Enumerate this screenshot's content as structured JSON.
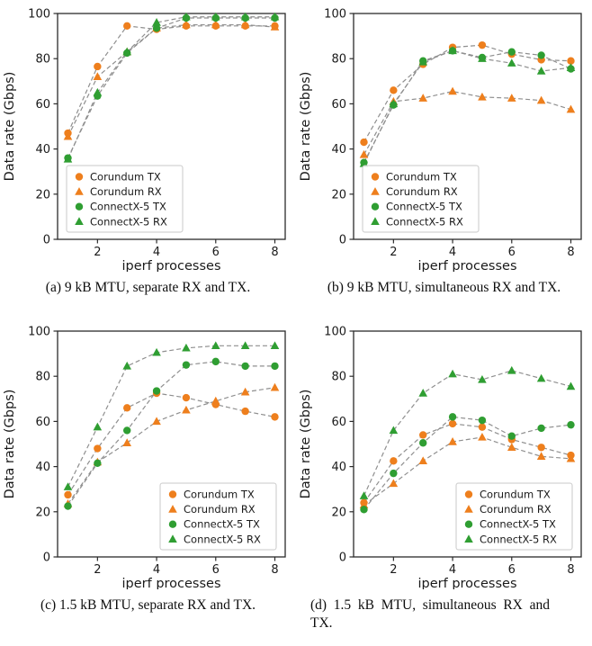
{
  "figure": {
    "background": "#ffffff",
    "captions": {
      "a": "(a) 9 kB MTU, separate RX and TX.",
      "b": "(b) 9 kB MTU, simultaneous RX and TX.",
      "c": "(c) 1.5 kB MTU, separate RX and TX.",
      "d": "(d) 1.5 kB MTU, simultaneous RX and TX."
    }
  },
  "colors": {
    "corundum": "#ee7f1d",
    "connectx5": "#2f9e32",
    "line": "#8f8f8f",
    "axis": "#2b2b2b",
    "legend_border": "#c9c9c9",
    "legend_bg": "rgba(255,255,255,0.88)"
  },
  "axes": {
    "xlabel": "iperf processes",
    "ylabel": "Data rate (Gbps)",
    "xticks": [
      2,
      4,
      6,
      8
    ],
    "yticks": [
      0,
      20,
      40,
      60,
      80,
      100
    ],
    "xlim": [
      0.65,
      8.35
    ],
    "ylim": [
      0,
      100
    ],
    "grid": false
  },
  "legend_entries": [
    {
      "label": "Corundum TX",
      "marker": "circle",
      "color": "#ee7f1d"
    },
    {
      "label": "Corundum RX",
      "marker": "triangle",
      "color": "#ee7f1d"
    },
    {
      "label": "ConnectX-5 TX",
      "marker": "circle",
      "color": "#2f9e32"
    },
    {
      "label": "ConnectX-5 RX",
      "marker": "triangle",
      "color": "#2f9e32"
    }
  ],
  "chart_data": [
    {
      "id": "a",
      "type": "line",
      "caption": "(a) 9 kB MTU, separate RX and TX.",
      "xlabel": "iperf processes",
      "ylabel": "Data rate (Gbps)",
      "legend_position": "lower-left",
      "x": [
        1,
        2,
        3,
        4,
        5,
        6,
        7,
        8
      ],
      "series": [
        {
          "name": "Corundum TX",
          "marker": "circle",
          "color": "#ee7f1d",
          "values": [
            47,
            76.5,
            94.5,
            93,
            94.5,
            94.5,
            94.5,
            94.5
          ]
        },
        {
          "name": "Corundum RX",
          "marker": "triangle",
          "color": "#ee7f1d",
          "values": [
            45.5,
            72,
            83,
            93.5,
            95,
            95,
            95,
            94
          ]
        },
        {
          "name": "ConnectX-5 TX",
          "marker": "circle",
          "color": "#2f9e32",
          "values": [
            36,
            63.5,
            82.5,
            93.5,
            98,
            98,
            98,
            98
          ]
        },
        {
          "name": "ConnectX-5 RX",
          "marker": "triangle",
          "color": "#2f9e32",
          "values": [
            35.5,
            65,
            83,
            96,
            98.5,
            98.5,
            98.5,
            98.5
          ]
        }
      ]
    },
    {
      "id": "b",
      "type": "line",
      "caption": "(b) 9 kB MTU, simultaneous RX and TX.",
      "xlabel": "iperf processes",
      "ylabel": "Data rate (Gbps)",
      "legend_position": "lower-left",
      "x": [
        1,
        2,
        3,
        4,
        5,
        6,
        7,
        8
      ],
      "series": [
        {
          "name": "Corundum TX",
          "marker": "circle",
          "color": "#ee7f1d",
          "values": [
            43,
            66,
            77.5,
            85,
            86,
            82,
            79.5,
            79
          ]
        },
        {
          "name": "Corundum RX",
          "marker": "triangle",
          "color": "#ee7f1d",
          "values": [
            37.5,
            61,
            62.5,
            65.5,
            63,
            62.5,
            61.5,
            57.5
          ]
        },
        {
          "name": "ConnectX-5 TX",
          "marker": "circle",
          "color": "#2f9e32",
          "values": [
            34,
            59.5,
            79,
            83.5,
            80.5,
            83,
            81.5,
            75.5
          ]
        },
        {
          "name": "ConnectX-5 RX",
          "marker": "triangle",
          "color": "#2f9e32",
          "values": [
            33.5,
            60,
            78.5,
            83.5,
            80,
            78,
            74.5,
            76
          ]
        }
      ]
    },
    {
      "id": "c",
      "type": "line",
      "caption": "(c) 1.5 kB MTU, separate RX and TX.",
      "xlabel": "iperf processes",
      "ylabel": "Data rate (Gbps)",
      "legend_position": "lower-right",
      "x": [
        1,
        2,
        3,
        4,
        5,
        6,
        7,
        8
      ],
      "series": [
        {
          "name": "Corundum TX",
          "marker": "circle",
          "color": "#ee7f1d",
          "values": [
            27.5,
            48,
            66,
            72.5,
            70.5,
            67.5,
            64.5,
            62
          ]
        },
        {
          "name": "Corundum RX",
          "marker": "triangle",
          "color": "#ee7f1d",
          "values": [
            23.5,
            42,
            50.5,
            60,
            65,
            69,
            73,
            75
          ]
        },
        {
          "name": "ConnectX-5 TX",
          "marker": "circle",
          "color": "#2f9e32",
          "values": [
            22.5,
            41.5,
            56,
            73.5,
            85,
            86.5,
            84.5,
            84.5
          ]
        },
        {
          "name": "ConnectX-5 RX",
          "marker": "triangle",
          "color": "#2f9e32",
          "values": [
            31,
            57.5,
            84.5,
            90.5,
            92.5,
            93.5,
            93.5,
            93.5
          ]
        }
      ]
    },
    {
      "id": "d",
      "type": "line",
      "caption": "(d) 1.5 kB MTU, simultaneous RX and TX.",
      "xlabel": "iperf processes",
      "ylabel": "Data rate (Gbps)",
      "legend_position": "lower-right",
      "x": [
        1,
        2,
        3,
        4,
        5,
        6,
        7,
        8
      ],
      "series": [
        {
          "name": "Corundum TX",
          "marker": "circle",
          "color": "#ee7f1d",
          "values": [
            24,
            42.5,
            54,
            59,
            57.5,
            52,
            48.5,
            45
          ]
        },
        {
          "name": "Corundum RX",
          "marker": "triangle",
          "color": "#ee7f1d",
          "values": [
            23,
            32.5,
            42.5,
            51,
            53,
            48.5,
            44.5,
            43.5
          ]
        },
        {
          "name": "ConnectX-5 TX",
          "marker": "circle",
          "color": "#2f9e32",
          "values": [
            21,
            37,
            50.5,
            62,
            60.5,
            53.5,
            57,
            58.5
          ]
        },
        {
          "name": "ConnectX-5 RX",
          "marker": "triangle",
          "color": "#2f9e32",
          "values": [
            27,
            56,
            72.5,
            81,
            78.5,
            82.5,
            79,
            75.5
          ]
        }
      ]
    }
  ]
}
